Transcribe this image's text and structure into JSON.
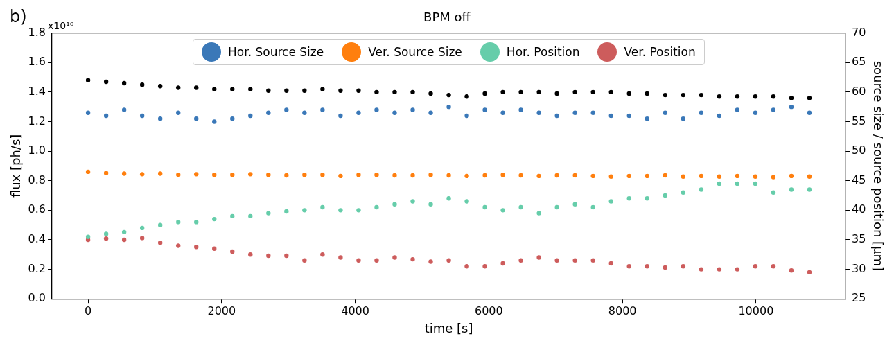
{
  "chart_data": {
    "type": "scatter",
    "title": "BPM off",
    "xlabel": "time [s]",
    "ylabel": "flux [ph/s]",
    "y2label": "source size / source position [µm]",
    "annotations": [
      "b)",
      "x10¹⁰"
    ],
    "x": [
      0,
      270,
      540,
      810,
      1080,
      1350,
      1620,
      1890,
      2160,
      2430,
      2700,
      2970,
      3240,
      3510,
      3780,
      4050,
      4320,
      4590,
      4860,
      5130,
      5400,
      5670,
      5940,
      6210,
      6480,
      6750,
      7020,
      7290,
      7560,
      7830,
      8100,
      8370,
      8640,
      8910,
      9180,
      9450,
      9720,
      9990,
      10260,
      10530,
      10800
    ],
    "series": [
      {
        "color": "#000000",
        "values": [
          1.48,
          1.47,
          1.46,
          1.45,
          1.44,
          1.43,
          1.43,
          1.42,
          1.42,
          1.42,
          1.41,
          1.41,
          1.41,
          1.42,
          1.41,
          1.41,
          1.4,
          1.4,
          1.4,
          1.39,
          1.38,
          1.37,
          1.39,
          1.4,
          1.4,
          1.4,
          1.39,
          1.4,
          1.4,
          1.4,
          1.39,
          1.39,
          1.38,
          1.38,
          1.38,
          1.37,
          1.37,
          1.37,
          1.37,
          1.36,
          1.36
        ]
      },
      {
        "name": "Hor. Source Size",
        "color": "#3a78b8",
        "axis": "y2",
        "values": [
          56.5,
          56,
          57,
          56,
          55.5,
          56.5,
          55.5,
          55,
          55.5,
          56,
          56.5,
          57,
          56.5,
          57,
          56,
          56.5,
          57,
          56.5,
          57,
          56.5,
          57.5,
          56,
          57,
          56.5,
          57,
          56.5,
          56,
          56.5,
          56.5,
          56,
          56,
          55.5,
          56.5,
          55.5,
          56.5,
          56,
          57,
          56.5,
          57,
          57.5,
          56.5
        ]
      },
      {
        "name": "Ver. Source Size",
        "color": "#ff7f0e",
        "axis": "y2",
        "values": [
          46.5,
          46.3,
          46.2,
          46.1,
          46.2,
          46,
          46.1,
          46,
          46,
          46.1,
          46,
          45.9,
          46,
          46,
          45.8,
          46,
          46,
          45.9,
          45.9,
          46,
          45.9,
          45.8,
          45.9,
          46,
          45.9,
          45.8,
          45.9,
          45.9,
          45.8,
          45.7,
          45.8,
          45.8,
          45.9,
          45.7,
          45.8,
          45.7,
          45.8,
          45.7,
          45.6,
          45.8,
          45.7
        ]
      },
      {
        "name": "Hor. Position",
        "color": "#66cdaa",
        "axis": "y2",
        "values": [
          35.5,
          36,
          36.3,
          37,
          37.5,
          38,
          38,
          38.5,
          39,
          39,
          39.5,
          39.8,
          40,
          40.5,
          40,
          40,
          40.5,
          41,
          41.5,
          41,
          42,
          41.5,
          40.5,
          40,
          40.5,
          39.5,
          40.5,
          41,
          40.5,
          41.5,
          42,
          42,
          42.5,
          43,
          43.5,
          44.5,
          44.5,
          44.5,
          43,
          43.5,
          43.5
        ]
      },
      {
        "name": "Ver. Position",
        "color": "#cd5c5c",
        "axis": "y2",
        "values": [
          35,
          35.2,
          35,
          35.3,
          34.5,
          34,
          33.8,
          33.5,
          33,
          32.5,
          32.3,
          32.3,
          31.5,
          32.5,
          32,
          31.5,
          31.5,
          32,
          31.7,
          31.3,
          31.5,
          30.5,
          30.5,
          31,
          31.5,
          32,
          31.5,
          31.5,
          31.5,
          31,
          30.5,
          30.5,
          30.3,
          30.5,
          30,
          30,
          30,
          30.5,
          30.5,
          29.8,
          29.5
        ]
      }
    ],
    "xlim": [
      -540,
      11340
    ],
    "xticks": [
      0,
      2000,
      4000,
      6000,
      8000,
      10000
    ],
    "ylim": [
      0,
      1.8
    ],
    "yticks": [
      {
        "value": 0,
        "label": "0.0"
      },
      0.2,
      0.4,
      0.6,
      0.8,
      {
        "value": 1,
        "label": "1.0"
      },
      1.2,
      1.4,
      1.6,
      1.8
    ],
    "y2lim": [
      25,
      70
    ],
    "y2ticks": [
      25,
      30,
      35,
      40,
      45,
      50,
      55,
      60,
      65,
      70
    ],
    "legend": "top",
    "marker": "circle",
    "grid": false
  }
}
